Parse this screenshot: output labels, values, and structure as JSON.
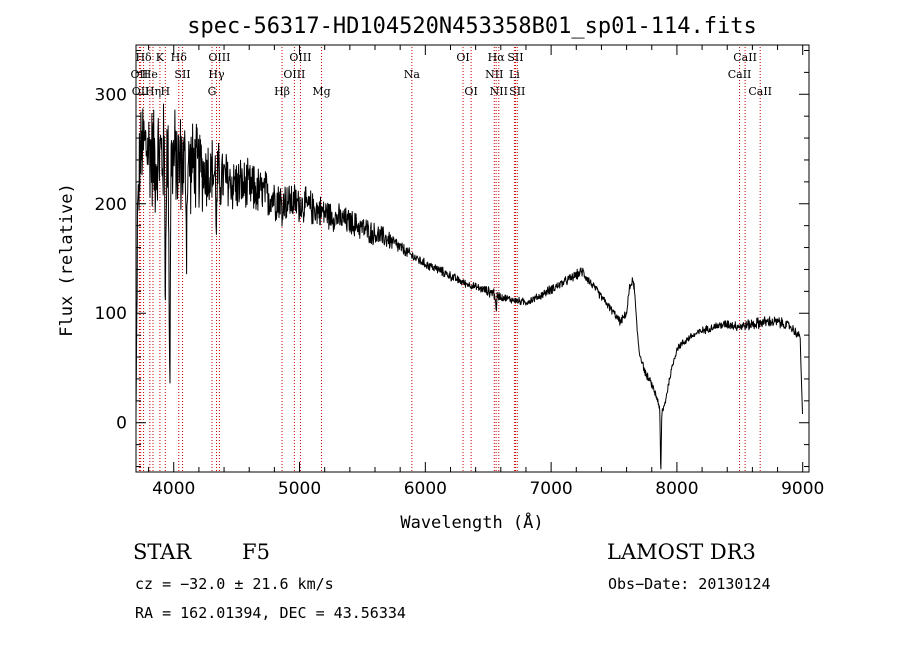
{
  "figure": {
    "title": "spec-56317-HD104520N453358B01_sp01-114.fits",
    "object_class": "STAR",
    "subclass": "F5",
    "survey": "LAMOST DR3",
    "redshift_text": "cz = −32.0 ± 21.6 km/s",
    "obs_date_text": "Obs−Date: 20130124",
    "coords_text": "RA = 162.01394, DEC =  43.56334"
  },
  "colors": {
    "line": "#000000",
    "marker": "#cc0000",
    "background": "#ffffff"
  },
  "chart_data": {
    "type": "line",
    "title": "spec-56317-HD104520N453358B01_sp01-114.fits",
    "xlabel": "Wavelength (Å)",
    "ylabel": "Flux (relative)",
    "xlim": [
      3700,
      9050
    ],
    "ylim": [
      -45,
      345
    ],
    "xticks": [
      4000,
      5000,
      6000,
      7000,
      8000,
      9000
    ],
    "yticks": [
      0,
      100,
      200,
      300
    ],
    "series": [
      {
        "name": "flux",
        "anchors_x": [
          3700,
          3712,
          3730,
          3760,
          3800,
          3850,
          3900,
          3950,
          4000,
          4050,
          4100,
          4150,
          4200,
          4250,
          4300,
          4350,
          4400,
          4500,
          4600,
          4700,
          4800,
          4900,
          5000,
          5100,
          5200,
          5300,
          5400,
          5500,
          5600,
          5700,
          5800,
          5900,
          6000,
          6100,
          6200,
          6300,
          6400,
          6500,
          6550,
          6600,
          6700,
          6800,
          6900,
          7000,
          7100,
          7200,
          7250,
          7300,
          7400,
          7500,
          7550,
          7600,
          7620,
          7640,
          7660,
          7680,
          7700,
          7750,
          7800,
          7850,
          7870,
          7900,
          7950,
          8000,
          8100,
          8200,
          8300,
          8400,
          8500,
          8600,
          8700,
          8800,
          8900,
          8950,
          8980,
          9000
        ],
        "anchors_y": [
          5,
          180,
          240,
          255,
          250,
          240,
          245,
          240,
          240,
          238,
          235,
          235,
          232,
          230,
          228,
          225,
          222,
          218,
          214,
          210,
          206,
          203,
          200,
          196,
          192,
          187,
          183,
          178,
          172,
          168,
          160,
          152,
          145,
          140,
          134,
          128,
          124,
          120,
          118,
          115,
          112,
          110,
          115,
          122,
          128,
          135,
          138,
          130,
          115,
          100,
          92,
          100,
          120,
          130,
          125,
          90,
          65,
          45,
          35,
          20,
          8,
          15,
          45,
          68,
          78,
          84,
          88,
          90,
          88,
          90,
          92,
          92,
          88,
          82,
          78,
          0
        ],
        "noise_amp": [
          0,
          50,
          50,
          50,
          55,
          60,
          60,
          60,
          55,
          55,
          50,
          48,
          45,
          42,
          40,
          38,
          35,
          30,
          28,
          26,
          24,
          22,
          20,
          18,
          16,
          15,
          14,
          13,
          12,
          11,
          7,
          6,
          5,
          5,
          5,
          4,
          4,
          5,
          7,
          4,
          4,
          4,
          4,
          5,
          5,
          5,
          6,
          5,
          4,
          4,
          4,
          4,
          5,
          5,
          5,
          5,
          4,
          4,
          4,
          4,
          4,
          4,
          4,
          4,
          4,
          4,
          4,
          5,
          5,
          6,
          6,
          6,
          5,
          5,
          4,
          0
        ],
        "dips": [
          {
            "x": 3968,
            "depth": 200,
            "width": 6
          },
          {
            "x": 3934,
            "depth": 120,
            "width": 5
          },
          {
            "x": 4102,
            "depth": 70,
            "width": 5
          },
          {
            "x": 4340,
            "depth": 45,
            "width": 5
          },
          {
            "x": 4861,
            "depth": 25,
            "width": 5
          },
          {
            "x": 6563,
            "depth": 18,
            "width": 5
          },
          {
            "x": 7872,
            "depth": 55,
            "width": 5
          }
        ]
      }
    ],
    "spectral_lines": [
      {
        "label": "Hδ",
        "x": 3760,
        "row": 1
      },
      {
        "label": "K",
        "x": 3890,
        "row": 1
      },
      {
        "label": "Hδ",
        "x": 4040,
        "row": 1
      },
      {
        "label": "OIII",
        "x": 4363,
        "row": 1
      },
      {
        "label": "OIII",
        "x": 5007,
        "row": 1
      },
      {
        "label": "OI",
        "x": 6300,
        "row": 1
      },
      {
        "label": "Hα",
        "x": 6563,
        "row": 1
      },
      {
        "label": "SII",
        "x": 6717,
        "row": 1
      },
      {
        "label": "CaII",
        "x": 8542,
        "row": 1
      },
      {
        "label": "OII",
        "x": 3727,
        "row": 2
      },
      {
        "label": "He",
        "x": 3810,
        "row": 2
      },
      {
        "label": "SII",
        "x": 4070,
        "row": 2
      },
      {
        "label": "Hγ",
        "x": 4340,
        "row": 2
      },
      {
        "label": "OIII",
        "x": 4959,
        "row": 2
      },
      {
        "label": "Na",
        "x": 5893,
        "row": 2
      },
      {
        "label": "NII",
        "x": 6548,
        "row": 2
      },
      {
        "label": "Li",
        "x": 6708,
        "row": 2
      },
      {
        "label": "CaII",
        "x": 8498,
        "row": 2
      },
      {
        "label": "OII",
        "x": 3737,
        "row": 3
      },
      {
        "label": "Hη",
        "x": 3835,
        "row": 3
      },
      {
        "label": "H",
        "x": 3933,
        "row": 3
      },
      {
        "label": "G",
        "x": 4304,
        "row": 3
      },
      {
        "label": "Hβ",
        "x": 4861,
        "row": 3
      },
      {
        "label": "Mg",
        "x": 5175,
        "row": 3
      },
      {
        "label": "OI",
        "x": 6364,
        "row": 3
      },
      {
        "label": "NII",
        "x": 6584,
        "row": 3
      },
      {
        "label": "SII",
        "x": 6731,
        "row": 3
      },
      {
        "label": "CaII",
        "x": 8662,
        "row": 3
      }
    ]
  }
}
